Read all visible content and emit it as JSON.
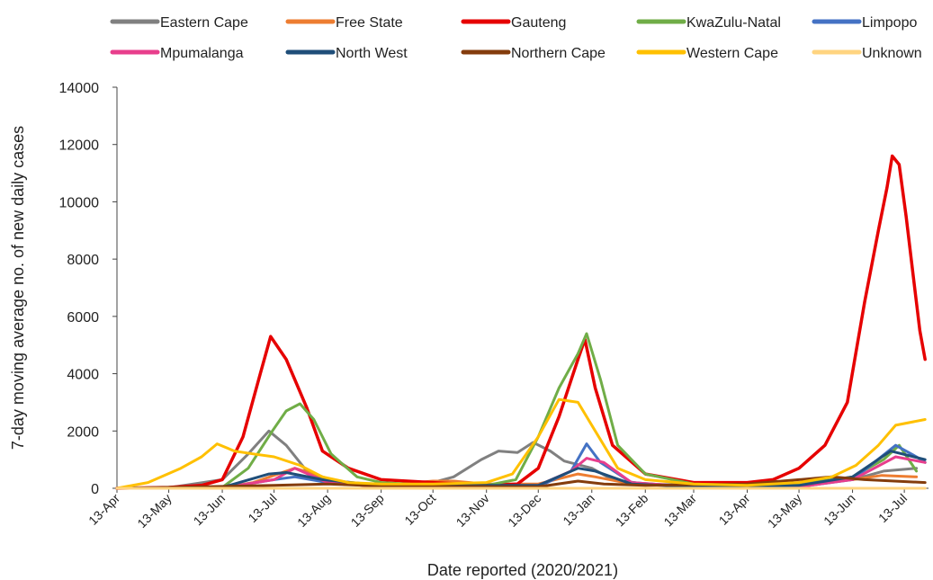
{
  "chart_data": {
    "type": "line",
    "xlabel": "Date reported (2020/2021)",
    "ylabel": "7-day moving average no. of new daily cases",
    "ylim": [
      0,
      14000
    ],
    "yticks": [
      0,
      2000,
      4000,
      6000,
      8000,
      10000,
      12000,
      14000
    ],
    "xlim": [
      "2020-04-13",
      "2021-07-27"
    ],
    "xticks": [
      {
        "date": "2020-04-13",
        "label": "13-Apr"
      },
      {
        "date": "2020-05-13",
        "label": "13-May"
      },
      {
        "date": "2020-06-13",
        "label": "13-Jun"
      },
      {
        "date": "2020-07-13",
        "label": "13-Jul"
      },
      {
        "date": "2020-08-13",
        "label": "13-Aug"
      },
      {
        "date": "2020-09-13",
        "label": "13-Sep"
      },
      {
        "date": "2020-10-13",
        "label": "13-Oct"
      },
      {
        "date": "2020-11-13",
        "label": "13-Nov"
      },
      {
        "date": "2020-12-13",
        "label": "13-Dec"
      },
      {
        "date": "2021-01-13",
        "label": "13-Jan"
      },
      {
        "date": "2021-02-13",
        "label": "13-Feb"
      },
      {
        "date": "2021-03-13",
        "label": "13-Mar"
      },
      {
        "date": "2021-04-13",
        "label": "13-Apr"
      },
      {
        "date": "2021-05-13",
        "label": "13-May"
      },
      {
        "date": "2021-06-13",
        "label": "13-Jun"
      },
      {
        "date": "2021-07-13",
        "label": "13-Jul"
      }
    ],
    "grid": false,
    "legend_position": "top",
    "series": [
      {
        "name": "Eastern Cape",
        "color": "#808080",
        "points": [
          [
            "2020-04-13",
            0
          ],
          [
            "2020-05-13",
            20
          ],
          [
            "2020-06-13",
            300
          ],
          [
            "2020-06-28",
            1200
          ],
          [
            "2020-07-10",
            2000
          ],
          [
            "2020-07-20",
            1500
          ],
          [
            "2020-08-01",
            600
          ],
          [
            "2020-08-15",
            200
          ],
          [
            "2020-09-13",
            120
          ],
          [
            "2020-10-13",
            200
          ],
          [
            "2020-10-25",
            400
          ],
          [
            "2020-11-10",
            1000
          ],
          [
            "2020-11-20",
            1300
          ],
          [
            "2020-12-01",
            1250
          ],
          [
            "2020-12-10",
            1600
          ],
          [
            "2020-12-20",
            1300
          ],
          [
            "2020-12-28",
            950
          ],
          [
            "2021-01-13",
            700
          ],
          [
            "2021-01-25",
            300
          ],
          [
            "2021-02-13",
            150
          ],
          [
            "2021-03-13",
            100
          ],
          [
            "2021-04-13",
            100
          ],
          [
            "2021-05-13",
            150
          ],
          [
            "2021-06-13",
            300
          ],
          [
            "2021-07-01",
            600
          ],
          [
            "2021-07-20",
            700
          ]
        ]
      },
      {
        "name": "Free State",
        "color": "#ED7D31",
        "points": [
          [
            "2020-04-13",
            0
          ],
          [
            "2020-06-13",
            20
          ],
          [
            "2020-07-01",
            200
          ],
          [
            "2020-07-25",
            700
          ],
          [
            "2020-08-05",
            500
          ],
          [
            "2020-08-20",
            200
          ],
          [
            "2020-09-13",
            100
          ],
          [
            "2020-10-13",
            250
          ],
          [
            "2020-10-25",
            250
          ],
          [
            "2020-11-13",
            150
          ],
          [
            "2020-12-13",
            150
          ],
          [
            "2021-01-05",
            500
          ],
          [
            "2021-01-15",
            400
          ],
          [
            "2021-02-05",
            150
          ],
          [
            "2021-03-13",
            80
          ],
          [
            "2021-04-13",
            100
          ],
          [
            "2021-05-13",
            200
          ],
          [
            "2021-06-13",
            300
          ],
          [
            "2021-06-30",
            450
          ],
          [
            "2021-07-20",
            400
          ]
        ]
      },
      {
        "name": "Gauteng",
        "color": "#E60000",
        "points": [
          [
            "2020-04-13",
            0
          ],
          [
            "2020-05-13",
            30
          ],
          [
            "2020-06-01",
            100
          ],
          [
            "2020-06-13",
            300
          ],
          [
            "2020-06-25",
            1800
          ],
          [
            "2020-07-05",
            4000
          ],
          [
            "2020-07-11",
            5300
          ],
          [
            "2020-07-20",
            4500
          ],
          [
            "2020-08-01",
            2800
          ],
          [
            "2020-08-10",
            1300
          ],
          [
            "2020-08-25",
            700
          ],
          [
            "2020-09-13",
            300
          ],
          [
            "2020-10-13",
            200
          ],
          [
            "2020-11-13",
            100
          ],
          [
            "2020-12-01",
            150
          ],
          [
            "2020-12-13",
            700
          ],
          [
            "2020-12-25",
            2500
          ],
          [
            "2021-01-05",
            4500
          ],
          [
            "2021-01-09",
            5200
          ],
          [
            "2021-01-15",
            3500
          ],
          [
            "2021-01-25",
            1500
          ],
          [
            "2021-02-13",
            500
          ],
          [
            "2021-03-13",
            200
          ],
          [
            "2021-04-13",
            200
          ],
          [
            "2021-04-28",
            300
          ],
          [
            "2021-05-13",
            700
          ],
          [
            "2021-05-28",
            1500
          ],
          [
            "2021-06-10",
            3000
          ],
          [
            "2021-06-20",
            6500
          ],
          [
            "2021-06-28",
            9000
          ],
          [
            "2021-07-03",
            10500
          ],
          [
            "2021-07-06",
            11600
          ],
          [
            "2021-07-10",
            11300
          ],
          [
            "2021-07-14",
            9500
          ],
          [
            "2021-07-18",
            7500
          ],
          [
            "2021-07-22",
            5500
          ],
          [
            "2021-07-25",
            4500
          ]
        ]
      },
      {
        "name": "KwaZulu-Natal",
        "color": "#70AD47",
        "points": [
          [
            "2020-04-13",
            0
          ],
          [
            "2020-06-13",
            30
          ],
          [
            "2020-06-28",
            700
          ],
          [
            "2020-07-12",
            2000
          ],
          [
            "2020-07-20",
            2700
          ],
          [
            "2020-07-28",
            2950
          ],
          [
            "2020-08-05",
            2400
          ],
          [
            "2020-08-15",
            1200
          ],
          [
            "2020-08-30",
            400
          ],
          [
            "2020-09-13",
            200
          ],
          [
            "2020-10-13",
            100
          ],
          [
            "2020-11-13",
            100
          ],
          [
            "2020-11-30",
            300
          ],
          [
            "2020-12-13",
            1800
          ],
          [
            "2020-12-25",
            3500
          ],
          [
            "2021-01-05",
            4700
          ],
          [
            "2021-01-10",
            5400
          ],
          [
            "2021-01-18",
            3800
          ],
          [
            "2021-01-28",
            1500
          ],
          [
            "2021-02-13",
            500
          ],
          [
            "2021-03-13",
            150
          ],
          [
            "2021-04-13",
            100
          ],
          [
            "2021-05-13",
            150
          ],
          [
            "2021-06-13",
            400
          ],
          [
            "2021-07-01",
            1000
          ],
          [
            "2021-07-10",
            1500
          ],
          [
            "2021-07-20",
            600
          ]
        ]
      },
      {
        "name": "Limpopo",
        "color": "#4472C4",
        "points": [
          [
            "2020-04-13",
            0
          ],
          [
            "2020-06-13",
            10
          ],
          [
            "2020-07-13",
            300
          ],
          [
            "2020-07-25",
            400
          ],
          [
            "2020-08-13",
            200
          ],
          [
            "2020-09-13",
            50
          ],
          [
            "2020-12-13",
            50
          ],
          [
            "2021-01-01",
            600
          ],
          [
            "2021-01-10",
            1550
          ],
          [
            "2021-01-18",
            900
          ],
          [
            "2021-02-05",
            200
          ],
          [
            "2021-03-13",
            50
          ],
          [
            "2021-05-13",
            50
          ],
          [
            "2021-06-13",
            300
          ],
          [
            "2021-07-08",
            1500
          ],
          [
            "2021-07-20",
            1100
          ],
          [
            "2021-07-25",
            900
          ]
        ]
      },
      {
        "name": "Mpumalanga",
        "color": "#E83E8C",
        "points": [
          [
            "2020-04-13",
            0
          ],
          [
            "2020-06-13",
            10
          ],
          [
            "2020-07-13",
            300
          ],
          [
            "2020-07-25",
            700
          ],
          [
            "2020-08-13",
            200
          ],
          [
            "2020-09-13",
            50
          ],
          [
            "2020-12-13",
            100
          ],
          [
            "2021-01-01",
            600
          ],
          [
            "2021-01-10",
            1050
          ],
          [
            "2021-01-20",
            900
          ],
          [
            "2021-02-05",
            200
          ],
          [
            "2021-03-13",
            50
          ],
          [
            "2021-05-13",
            50
          ],
          [
            "2021-06-13",
            300
          ],
          [
            "2021-07-08",
            1100
          ],
          [
            "2021-07-25",
            900
          ]
        ]
      },
      {
        "name": "North West",
        "color": "#1F4E79",
        "points": [
          [
            "2020-04-13",
            0
          ],
          [
            "2020-06-13",
            30
          ],
          [
            "2020-07-10",
            500
          ],
          [
            "2020-07-20",
            550
          ],
          [
            "2020-08-10",
            300
          ],
          [
            "2020-09-13",
            100
          ],
          [
            "2020-12-13",
            100
          ],
          [
            "2021-01-05",
            700
          ],
          [
            "2021-01-15",
            600
          ],
          [
            "2021-02-05",
            150
          ],
          [
            "2021-03-13",
            50
          ],
          [
            "2021-05-13",
            100
          ],
          [
            "2021-06-13",
            400
          ],
          [
            "2021-07-05",
            1300
          ],
          [
            "2021-07-25",
            1000
          ]
        ]
      },
      {
        "name": "Northern Cape",
        "color": "#843C0C",
        "points": [
          [
            "2020-04-13",
            0
          ],
          [
            "2020-07-13",
            100
          ],
          [
            "2020-08-13",
            150
          ],
          [
            "2020-09-13",
            80
          ],
          [
            "2020-12-13",
            50
          ],
          [
            "2021-01-05",
            250
          ],
          [
            "2021-01-20",
            150
          ],
          [
            "2021-02-13",
            100
          ],
          [
            "2021-04-13",
            150
          ],
          [
            "2021-05-13",
            300
          ],
          [
            "2021-06-01",
            400
          ],
          [
            "2021-06-20",
            300
          ],
          [
            "2021-07-25",
            200
          ]
        ]
      },
      {
        "name": "Western Cape",
        "color": "#FFC000",
        "points": [
          [
            "2020-04-13",
            0
          ],
          [
            "2020-05-01",
            200
          ],
          [
            "2020-05-20",
            700
          ],
          [
            "2020-06-01",
            1100
          ],
          [
            "2020-06-10",
            1550
          ],
          [
            "2020-06-20",
            1300
          ],
          [
            "2020-07-01",
            1200
          ],
          [
            "2020-07-13",
            1100
          ],
          [
            "2020-07-28",
            800
          ],
          [
            "2020-08-10",
            400
          ],
          [
            "2020-08-25",
            200
          ],
          [
            "2020-09-13",
            150
          ],
          [
            "2020-10-13",
            150
          ],
          [
            "2020-11-13",
            200
          ],
          [
            "2020-11-28",
            500
          ],
          [
            "2020-12-13",
            1800
          ],
          [
            "2020-12-25",
            3100
          ],
          [
            "2021-01-05",
            3000
          ],
          [
            "2021-01-15",
            2000
          ],
          [
            "2021-01-28",
            700
          ],
          [
            "2021-02-13",
            300
          ],
          [
            "2021-03-13",
            150
          ],
          [
            "2021-04-13",
            100
          ],
          [
            "2021-05-13",
            200
          ],
          [
            "2021-06-01",
            400
          ],
          [
            "2021-06-15",
            800
          ],
          [
            "2021-06-28",
            1500
          ],
          [
            "2021-07-08",
            2200
          ],
          [
            "2021-07-25",
            2400
          ]
        ]
      },
      {
        "name": "Unknown",
        "color": "#FFD480",
        "points": [
          [
            "2020-04-13",
            0
          ],
          [
            "2021-07-25",
            0
          ]
        ]
      }
    ]
  }
}
